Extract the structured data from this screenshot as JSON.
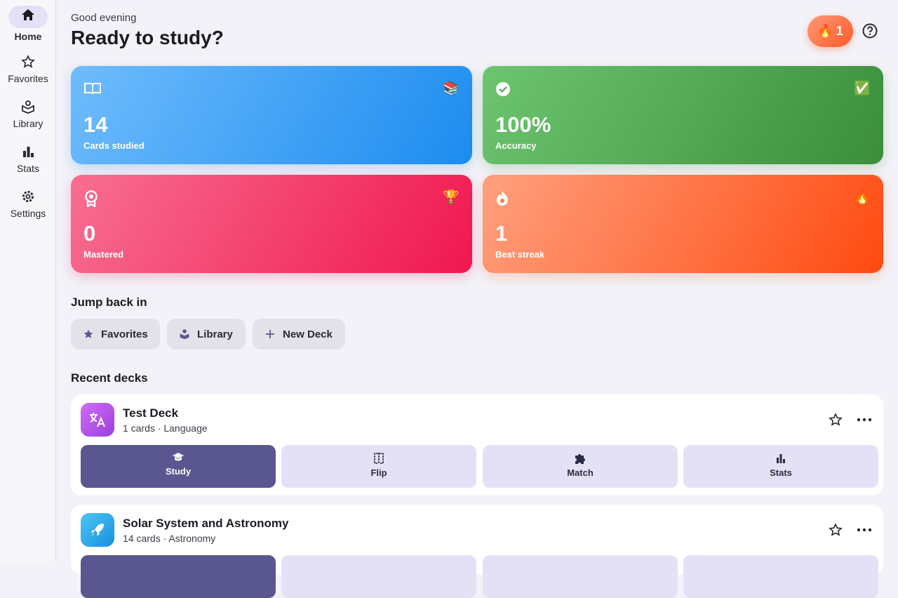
{
  "sidebar": {
    "items": [
      {
        "label": "Home"
      },
      {
        "label": "Favorites"
      },
      {
        "label": "Library"
      },
      {
        "label": "Stats"
      },
      {
        "label": "Settings"
      }
    ]
  },
  "header": {
    "greeting": "Good evening",
    "title": "Ready to study?",
    "streak_icon": "🔥",
    "streak": "1"
  },
  "stats": [
    {
      "value": "14",
      "label": "Cards studied",
      "emoji": "📚"
    },
    {
      "value": "100%",
      "label": "Accuracy",
      "emoji": "✅"
    },
    {
      "value": "0",
      "label": "Mastered",
      "emoji": "🏆"
    },
    {
      "value": "1",
      "label": "Best streak",
      "emoji": "🔥"
    }
  ],
  "jump_back": {
    "title": "Jump back in",
    "buttons": [
      "Favorites",
      "Library",
      "New Deck"
    ]
  },
  "recent": {
    "title": "Recent decks",
    "decks": [
      {
        "name": "Test Deck",
        "meta": "1 cards · Language",
        "actions": [
          "Study",
          "Flip",
          "Match",
          "Stats"
        ]
      },
      {
        "name": "Solar System and Astronomy",
        "meta": "14 cards · Astronomy"
      }
    ]
  }
}
